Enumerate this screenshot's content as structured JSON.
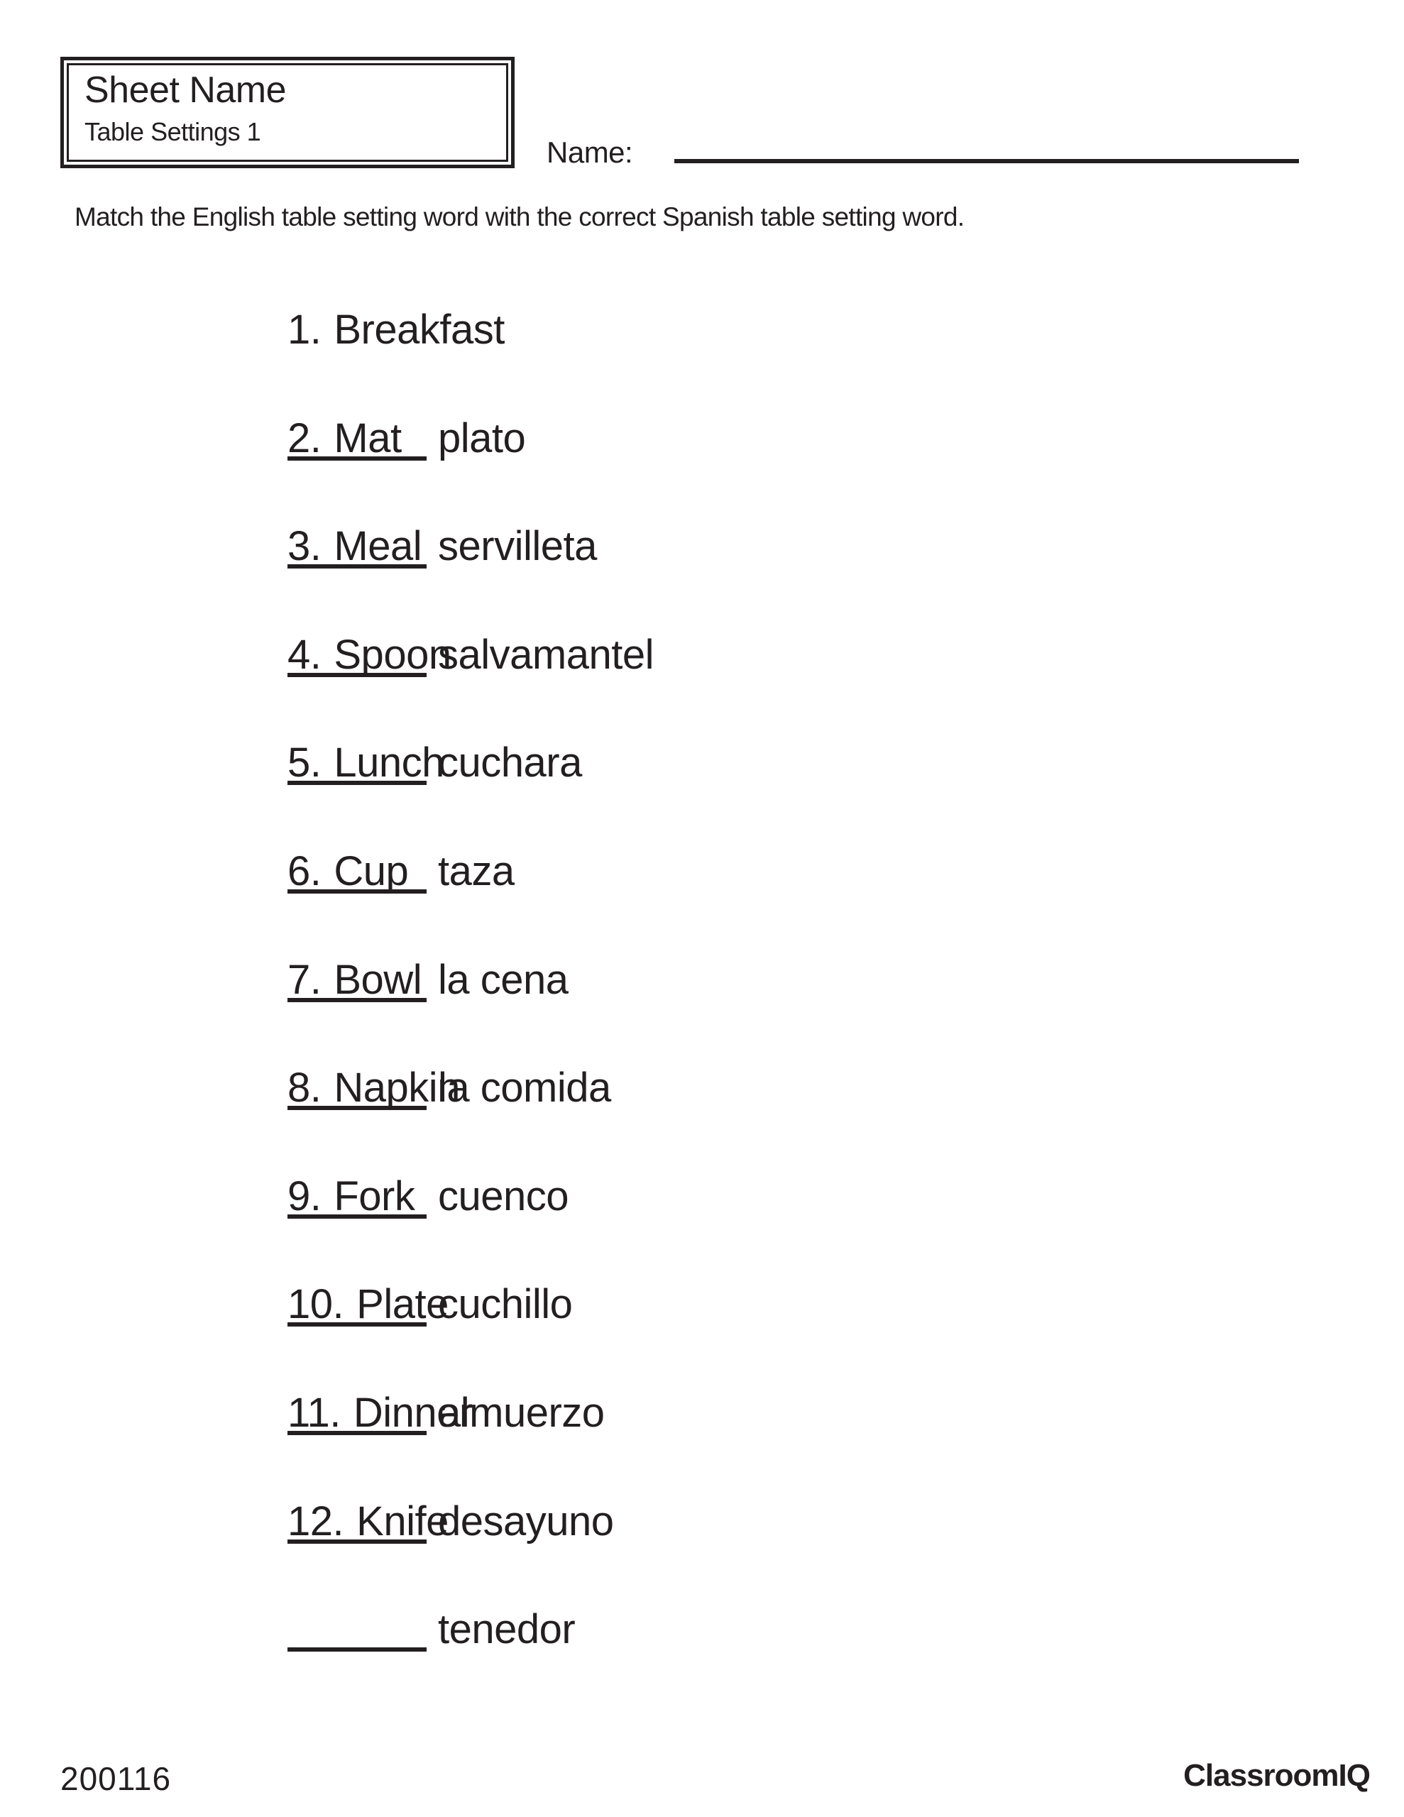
{
  "header_box": {
    "sheet_label": "Sheet Name",
    "sheet_title": "Table Settings 1"
  },
  "name_field": {
    "label": "Name:"
  },
  "instructions": "Match the English table setting word with the correct Spanish table setting word.",
  "matching": {
    "items": [
      {
        "number": "1.",
        "english": "Breakfast",
        "spanish": "plato"
      },
      {
        "number": "2.",
        "english": "Mat",
        "spanish": "servilleta"
      },
      {
        "number": "3.",
        "english": "Meal",
        "spanish": "salvamantel"
      },
      {
        "number": "4.",
        "english": "Spoon",
        "spanish": "cuchara"
      },
      {
        "number": "5.",
        "english": "Lunch",
        "spanish": "taza"
      },
      {
        "number": "6.",
        "english": "Cup",
        "spanish": "la cena"
      },
      {
        "number": "7.",
        "english": "Bowl",
        "spanish": "la comida"
      },
      {
        "number": "8.",
        "english": "Napkin",
        "spanish": "cuenco"
      },
      {
        "number": "9.",
        "english": "Fork",
        "spanish": "cuchillo"
      },
      {
        "number": "10.",
        "english": "Plate",
        "spanish": "almuerzo"
      },
      {
        "number": "11.",
        "english": "Dinner",
        "spanish": "desayuno"
      },
      {
        "number": "12.",
        "english": "Knife",
        "spanish": "tenedor"
      }
    ]
  },
  "footer": {
    "code": "200116",
    "brand": "ClassroomIQ"
  },
  "colors": {
    "ink": "#231f20",
    "background": "#ffffff"
  }
}
